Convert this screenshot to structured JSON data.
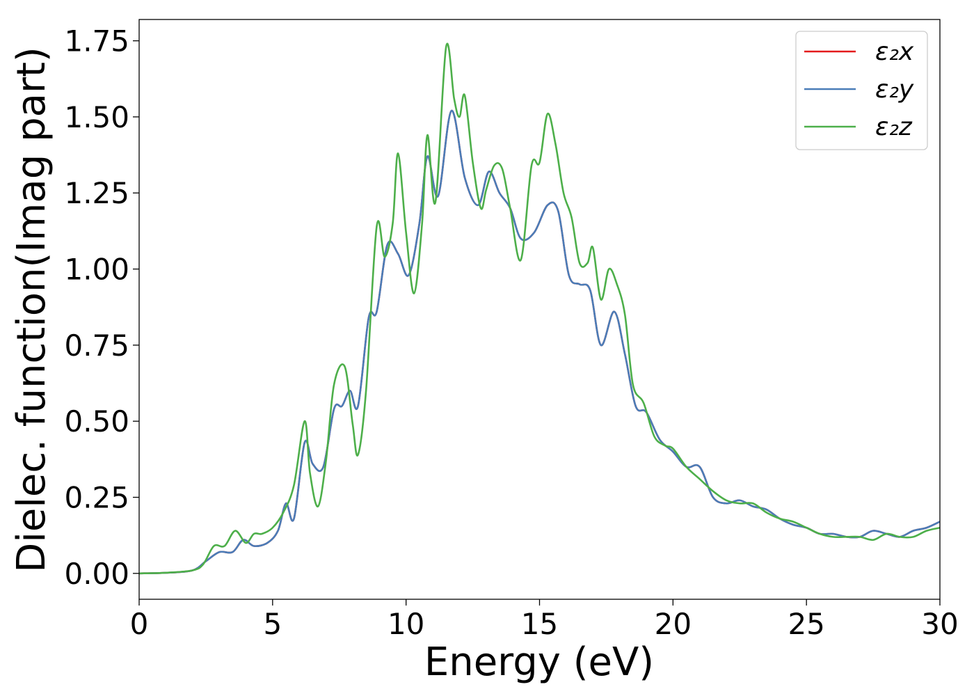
{
  "chart_data": {
    "type": "line",
    "title": "",
    "xlabel": "Energy (eV)",
    "ylabel": "Dielec. function(Imag part)",
    "xlim": [
      0,
      30
    ],
    "ylim": [
      -0.085,
      1.82
    ],
    "xticks": [
      "0",
      "5",
      "10",
      "15",
      "20",
      "25",
      "30"
    ],
    "yticks": [
      "0.00",
      "0.25",
      "0.50",
      "0.75",
      "1.00",
      "1.25",
      "1.50",
      "1.75"
    ],
    "grid": false,
    "legend_position": "top-right",
    "series": [
      {
        "name": "ε₂x",
        "color": "#e41a1c",
        "x": [
          0,
          1,
          2,
          2.5,
          3,
          3.5,
          3.9,
          4.3,
          4.8,
          5.2,
          5.5,
          5.8,
          6.2,
          6.5,
          6.9,
          7.3,
          7.6,
          7.9,
          8.2,
          8.6,
          8.9,
          9.3,
          9.7,
          10.1,
          10.5,
          10.8,
          11.2,
          11.7,
          12.2,
          12.7,
          13.1,
          13.5,
          13.9,
          14.3,
          14.8,
          15.3,
          15.7,
          16.1,
          16.5,
          16.9,
          17.3,
          17.8,
          18.2,
          18.6,
          19.0,
          19.5,
          20.0,
          20.5,
          21.0,
          21.5,
          22.0,
          22.5,
          23.0,
          23.5,
          24.0,
          24.5,
          25.0,
          25.5,
          26.0,
          26.5,
          27.0,
          27.5,
          28.0,
          28.5,
          29.0,
          29.5,
          30.0
        ],
        "y": [
          0.0,
          0.002,
          0.01,
          0.04,
          0.07,
          0.07,
          0.11,
          0.09,
          0.1,
          0.14,
          0.23,
          0.18,
          0.43,
          0.36,
          0.35,
          0.54,
          0.55,
          0.6,
          0.55,
          0.84,
          0.86,
          1.08,
          1.05,
          0.98,
          1.15,
          1.37,
          1.24,
          1.52,
          1.3,
          1.21,
          1.32,
          1.25,
          1.2,
          1.1,
          1.12,
          1.21,
          1.19,
          0.98,
          0.95,
          0.93,
          0.75,
          0.86,
          0.72,
          0.55,
          0.53,
          0.44,
          0.4,
          0.35,
          0.35,
          0.25,
          0.23,
          0.24,
          0.22,
          0.21,
          0.18,
          0.16,
          0.15,
          0.13,
          0.13,
          0.12,
          0.12,
          0.14,
          0.13,
          0.12,
          0.14,
          0.15,
          0.17
        ]
      },
      {
        "name": "ε₂y",
        "color": "#4a7db8",
        "x": [
          0,
          1,
          2,
          2.5,
          3,
          3.5,
          3.9,
          4.3,
          4.8,
          5.2,
          5.5,
          5.8,
          6.2,
          6.5,
          6.9,
          7.3,
          7.6,
          7.9,
          8.2,
          8.6,
          8.9,
          9.3,
          9.7,
          10.1,
          10.5,
          10.8,
          11.2,
          11.7,
          12.2,
          12.7,
          13.1,
          13.5,
          13.9,
          14.3,
          14.8,
          15.3,
          15.7,
          16.1,
          16.5,
          16.9,
          17.3,
          17.8,
          18.2,
          18.6,
          19.0,
          19.5,
          20.0,
          20.5,
          21.0,
          21.5,
          22.0,
          22.5,
          23.0,
          23.5,
          24.0,
          24.5,
          25.0,
          25.5,
          26.0,
          26.5,
          27.0,
          27.5,
          28.0,
          28.5,
          29.0,
          29.5,
          30.0
        ],
        "y": [
          0.0,
          0.002,
          0.01,
          0.04,
          0.07,
          0.07,
          0.11,
          0.09,
          0.1,
          0.14,
          0.23,
          0.18,
          0.43,
          0.36,
          0.35,
          0.54,
          0.55,
          0.6,
          0.55,
          0.84,
          0.86,
          1.08,
          1.05,
          0.98,
          1.15,
          1.37,
          1.24,
          1.52,
          1.3,
          1.21,
          1.32,
          1.25,
          1.2,
          1.1,
          1.12,
          1.21,
          1.19,
          0.98,
          0.95,
          0.93,
          0.75,
          0.86,
          0.72,
          0.55,
          0.53,
          0.44,
          0.4,
          0.35,
          0.35,
          0.25,
          0.23,
          0.24,
          0.22,
          0.21,
          0.18,
          0.16,
          0.15,
          0.13,
          0.13,
          0.12,
          0.12,
          0.14,
          0.13,
          0.12,
          0.14,
          0.15,
          0.17
        ]
      },
      {
        "name": "ε₂z",
        "color": "#4daf4a",
        "x": [
          0,
          1,
          2,
          2.4,
          2.8,
          3.2,
          3.6,
          4.0,
          4.3,
          4.6,
          5.0,
          5.4,
          5.8,
          6.2,
          6.4,
          6.7,
          7.0,
          7.3,
          7.7,
          8.0,
          8.2,
          8.5,
          8.9,
          9.2,
          9.5,
          9.7,
          10.0,
          10.3,
          10.6,
          10.8,
          11.1,
          11.5,
          11.8,
          12.0,
          12.2,
          12.5,
          12.8,
          13.0,
          13.3,
          13.6,
          13.9,
          14.3,
          14.7,
          15.0,
          15.3,
          15.6,
          15.9,
          16.2,
          16.5,
          16.8,
          17.0,
          17.3,
          17.6,
          17.9,
          18.2,
          18.5,
          18.9,
          19.3,
          19.7,
          20.0,
          20.5,
          21.0,
          21.5,
          22.0,
          22.5,
          23.0,
          23.5,
          24.0,
          24.5,
          25.0,
          25.5,
          26.0,
          26.5,
          27.0,
          27.5,
          28.0,
          28.5,
          29.0,
          29.5,
          30.0
        ],
        "y": [
          0.0,
          0.002,
          0.01,
          0.03,
          0.09,
          0.09,
          0.14,
          0.1,
          0.13,
          0.13,
          0.15,
          0.2,
          0.29,
          0.5,
          0.33,
          0.22,
          0.37,
          0.62,
          0.68,
          0.49,
          0.39,
          0.6,
          1.14,
          1.04,
          1.15,
          1.38,
          1.12,
          0.92,
          1.15,
          1.44,
          1.22,
          1.73,
          1.56,
          1.5,
          1.57,
          1.35,
          1.2,
          1.26,
          1.34,
          1.33,
          1.2,
          1.03,
          1.34,
          1.35,
          1.51,
          1.41,
          1.25,
          1.17,
          1.02,
          1.02,
          1.07,
          0.9,
          1.0,
          0.95,
          0.85,
          0.62,
          0.56,
          0.45,
          0.42,
          0.41,
          0.35,
          0.31,
          0.27,
          0.24,
          0.23,
          0.23,
          0.2,
          0.18,
          0.17,
          0.15,
          0.13,
          0.12,
          0.12,
          0.12,
          0.11,
          0.13,
          0.12,
          0.12,
          0.14,
          0.15
        ]
      }
    ]
  }
}
